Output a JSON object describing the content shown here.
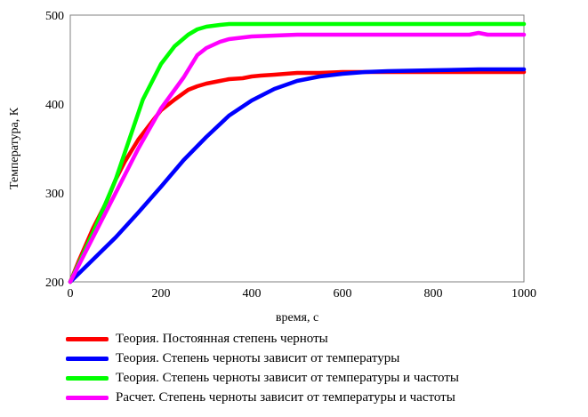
{
  "chart_data": {
    "type": "line",
    "xlabel": "время, с",
    "ylabel": "Температура, К",
    "xlim": [
      0,
      1000
    ],
    "ylim": [
      200,
      500
    ],
    "xticks": [
      0,
      200,
      400,
      600,
      800,
      1000
    ],
    "yticks": [
      200,
      300,
      400,
      500
    ],
    "grid": false,
    "legend_position": "bottom",
    "series": [
      {
        "name": "Теория. Постоянная степень черноты",
        "color": "#ff0000",
        "x": [
          0,
          20,
          50,
          80,
          100,
          120,
          150,
          180,
          200,
          230,
          260,
          280,
          300,
          330,
          350,
          380,
          400,
          420,
          450,
          500,
          550,
          600,
          700,
          800,
          900,
          1000
        ],
        "y": [
          200,
          225,
          260,
          290,
          315,
          335,
          360,
          380,
          393,
          405,
          416,
          420,
          423,
          426,
          428,
          429,
          431,
          432,
          433,
          435,
          435,
          436,
          436,
          436,
          436,
          436
        ]
      },
      {
        "name": "Теория. Степень черноты зависит от температуры",
        "color": "#0000ff",
        "x": [
          0,
          50,
          100,
          150,
          200,
          250,
          300,
          350,
          400,
          450,
          500,
          550,
          600,
          650,
          700,
          800,
          900,
          1000
        ],
        "y": [
          200,
          225,
          250,
          278,
          307,
          337,
          363,
          387,
          404,
          417,
          426,
          431,
          434,
          436,
          437,
          438,
          439,
          439
        ]
      },
      {
        "name": "Теория. Степень черноты зависит от температуры и частоты",
        "color": "#00ff00",
        "x": [
          0,
          50,
          100,
          130,
          160,
          200,
          230,
          260,
          280,
          300,
          330,
          350,
          400,
          500,
          600,
          700,
          800,
          900,
          1000
        ],
        "y": [
          200,
          255,
          315,
          360,
          405,
          445,
          465,
          478,
          484,
          487,
          489,
          490,
          490,
          490,
          490,
          490,
          490,
          490,
          490
        ]
      },
      {
        "name": "Расчет.  Степень черноты зависит от температуры и частоты",
        "color": "#ff00ff",
        "x": [
          0,
          50,
          100,
          150,
          200,
          250,
          280,
          300,
          330,
          350,
          400,
          450,
          500,
          600,
          700,
          800,
          880,
          900,
          920,
          1000
        ],
        "y": [
          200,
          250,
          300,
          350,
          395,
          430,
          455,
          463,
          470,
          473,
          476,
          477,
          478,
          478,
          478,
          478,
          478,
          480,
          478,
          478
        ]
      }
    ]
  }
}
